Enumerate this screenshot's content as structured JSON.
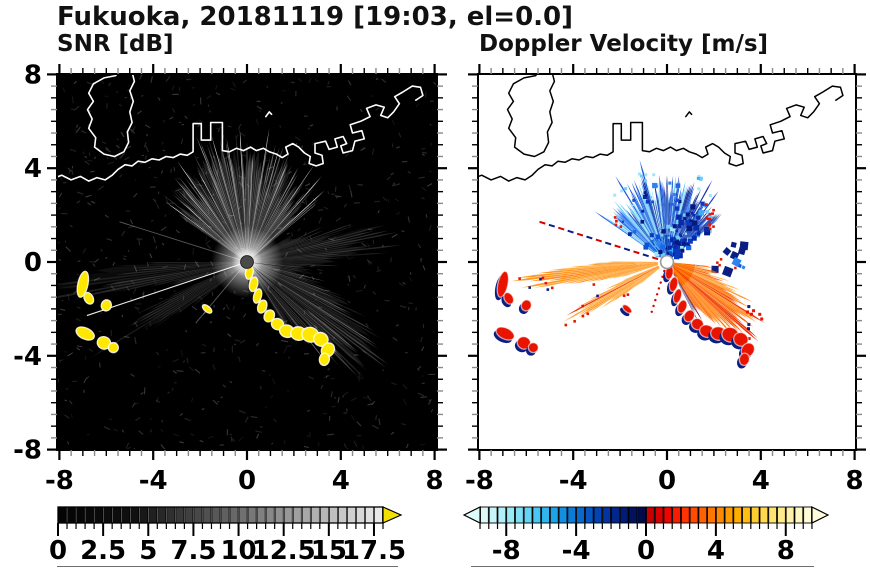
{
  "figure": {
    "title": "Fukuoka, 20181119 [19:03, el=0.0]"
  },
  "panels": {
    "left": {
      "subtitle": "SNR [dB]",
      "x_tick_labels": [
        "-8",
        "-4",
        "0",
        "4",
        "8"
      ],
      "x_tick_values": [
        -8,
        -4,
        0,
        4,
        8
      ],
      "y_tick_labels": [
        "8",
        "4",
        "0",
        "-4",
        "-8"
      ],
      "y_tick_values": [
        8,
        4,
        0,
        -4,
        -8
      ]
    },
    "right": {
      "subtitle": "Doppler Velocity [m/s]",
      "x_tick_labels": [
        "-8",
        "-4",
        "0",
        "4",
        "8"
      ],
      "x_tick_values": [
        -8,
        -4,
        0,
        4,
        8
      ]
    }
  },
  "colorbars": {
    "snr": {
      "labels": [
        "0",
        "2.5",
        "5",
        "7.5",
        "10",
        "12.5",
        "15",
        "17.5"
      ],
      "tick_values": [
        0,
        2.5,
        5,
        7.5,
        10,
        12.5,
        15,
        17.5
      ],
      "range": [
        0,
        18
      ],
      "cell": 0.5,
      "over_color": "#f2e000",
      "gray_flat_until": 4,
      "gray_min": "#040404",
      "gray_max": "#f0f0f0"
    },
    "vel": {
      "labels": [
        "-8",
        "-4",
        "0",
        "4",
        "8"
      ],
      "tick_values": [
        -8,
        -4,
        0,
        4,
        8
      ],
      "range": [
        -9.5,
        9.5
      ],
      "cell": 0.5,
      "under_color": "#dcfbfb",
      "over_color": "#fffbdc",
      "neg_colors": [
        "#daf8f8",
        "#c6f4f8",
        "#b0f0f8",
        "#9ae9f6",
        "#80dff4",
        "#64d4f2",
        "#4ac6f0",
        "#30b6ec",
        "#1ca4e6",
        "#128fe0",
        "#0c7bd6",
        "#0968cc",
        "#0655c2",
        "#0444b2",
        "#0334a0",
        "#02278a",
        "#021b74",
        "#01125e",
        "#010b4a"
      ],
      "pos_colors": [
        "#c40000",
        "#d80000",
        "#ec0600",
        "#fa1c00",
        "#ff3400",
        "#ff4a00",
        "#ff6000",
        "#ff7600",
        "#ff8a00",
        "#ff9c00",
        "#ffae00",
        "#ffbe10",
        "#ffcc30",
        "#ffd850",
        "#ffe270",
        "#ffea8c",
        "#fff1a8",
        "#fff7c2",
        "#fffbd6"
      ]
    }
  },
  "map": {
    "coast_main": [
      [
        -8.3,
        3.55
      ],
      [
        -7.9,
        3.7
      ],
      [
        -7.5,
        3.5
      ],
      [
        -7.1,
        3.65
      ],
      [
        -6.75,
        3.45
      ],
      [
        -6.4,
        3.6
      ],
      [
        -6.05,
        3.5
      ],
      [
        -5.75,
        3.7
      ],
      [
        -5.5,
        3.95
      ],
      [
        -5.2,
        4.15
      ],
      [
        -4.9,
        4.1
      ],
      [
        -4.65,
        4.3
      ],
      [
        -4.35,
        4.25
      ],
      [
        -4.05,
        4.4
      ],
      [
        -3.75,
        4.35
      ],
      [
        -3.45,
        4.5
      ],
      [
        -3.15,
        4.45
      ],
      [
        -2.85,
        4.6
      ],
      [
        -2.55,
        4.55
      ],
      [
        -2.3,
        4.7
      ],
      [
        -2.3,
        5.9
      ],
      [
        -1.95,
        5.9
      ],
      [
        -1.95,
        5.2
      ],
      [
        -1.55,
        5.2
      ],
      [
        -1.55,
        5.95
      ],
      [
        -1.05,
        5.95
      ],
      [
        -1.05,
        4.75
      ],
      [
        -0.75,
        4.7
      ],
      [
        -0.45,
        4.85
      ],
      [
        -0.15,
        4.75
      ],
      [
        0.15,
        4.9
      ],
      [
        0.4,
        4.75
      ],
      [
        0.7,
        4.85
      ],
      [
        0.95,
        4.7
      ],
      [
        1.25,
        4.6
      ],
      [
        1.5,
        4.45
      ],
      [
        1.75,
        4.6
      ],
      [
        1.65,
        4.9
      ],
      [
        1.95,
        5.05
      ],
      [
        2.2,
        4.9
      ],
      [
        2.45,
        4.65
      ],
      [
        2.7,
        4.5
      ],
      [
        2.65,
        4.2
      ],
      [
        2.95,
        4.1
      ],
      [
        3.25,
        4.2
      ],
      [
        3.2,
        4.55
      ],
      [
        2.9,
        4.65
      ],
      [
        2.9,
        5.05
      ],
      [
        3.35,
        5.15
      ],
      [
        3.5,
        4.8
      ],
      [
        3.85,
        4.9
      ],
      [
        3.75,
        5.25
      ],
      [
        4.1,
        5.35
      ],
      [
        4.25,
        5.05
      ],
      [
        4.0,
        4.95
      ],
      [
        4.1,
        4.65
      ],
      [
        4.5,
        4.75
      ],
      [
        4.6,
        5.15
      ],
      [
        5.0,
        5.25
      ],
      [
        4.9,
        5.6
      ],
      [
        4.5,
        5.5
      ],
      [
        4.4,
        5.85
      ],
      [
        4.85,
        6.0
      ],
      [
        5.25,
        6.2
      ],
      [
        5.1,
        6.55
      ],
      [
        5.5,
        6.7
      ],
      [
        5.85,
        6.6
      ],
      [
        5.7,
        6.25
      ],
      [
        6.0,
        6.15
      ],
      [
        6.25,
        6.4
      ],
      [
        6.5,
        6.75
      ],
      [
        6.3,
        7.05
      ],
      [
        6.65,
        7.25
      ],
      [
        7.05,
        7.5
      ],
      [
        7.4,
        7.45
      ],
      [
        7.5,
        7.1
      ],
      [
        7.2,
        6.9
      ]
    ],
    "coast_island": [
      [
        -5.35,
        8.3
      ],
      [
        -5.6,
        7.95
      ],
      [
        -6.1,
        7.85
      ],
      [
        -6.55,
        7.6
      ],
      [
        -6.75,
        7.2
      ],
      [
        -6.55,
        6.85
      ],
      [
        -6.8,
        6.5
      ],
      [
        -6.6,
        6.1
      ],
      [
        -6.75,
        5.7
      ],
      [
        -6.45,
        5.3
      ],
      [
        -6.5,
        4.9
      ],
      [
        -6.1,
        4.6
      ],
      [
        -5.65,
        4.5
      ],
      [
        -5.25,
        4.7
      ],
      [
        -5.05,
        5.1
      ],
      [
        -5.1,
        5.55
      ],
      [
        -4.9,
        5.95
      ],
      [
        -5.0,
        6.4
      ],
      [
        -4.85,
        6.85
      ],
      [
        -5.0,
        7.3
      ],
      [
        -4.8,
        7.7
      ],
      [
        -4.95,
        8.3
      ]
    ],
    "islet": [
      [
        0.8,
        6.2
      ],
      [
        0.95,
        6.4
      ],
      [
        1.05,
        6.3
      ]
    ]
  },
  "radar": {
    "center_km": [
      0,
      0
    ],
    "snr": {
      "bg": "#000000",
      "coast_color": "#ffffff",
      "clutter_color": "#ffe800",
      "center_color": "#4a4a4a"
    },
    "vel": {
      "bg": "#ffffff",
      "coast_color": "#000000",
      "center_color": "#ffffff",
      "blue_dark": [
        "#051a7e",
        "#082aa6",
        "#0b3ac0"
      ],
      "blue_mid": [
        "#1150d6",
        "#1c66ea",
        "#2b84f0"
      ],
      "blue_light": [
        "#43aaf4",
        "#6fcdf7",
        "#a2e6fa"
      ],
      "orange": [
        "#ff6e00",
        "#ff8312",
        "#f95200",
        "#ea2c00",
        "#ff9018"
      ],
      "orange_light": "#ffa838",
      "navy": "#0a1e84",
      "red": "#e81400"
    },
    "sectors": [
      {
        "name": "north_fan",
        "az0": -55,
        "az1": 50,
        "peak": -5,
        "sigma": 40,
        "rbase": 2.6,
        "ramp": 0.9
      },
      {
        "name": "se_lobe",
        "az0": 96,
        "az1": 150,
        "peak": 128,
        "sigma": 19,
        "rbase": 1.6,
        "ramp": 3.1
      },
      {
        "name": "west_wedge_a",
        "az0": 252,
        "az1": 270,
        "peak": 262,
        "sigma": 7,
        "rbase": 1.8,
        "ramp": 4.5
      },
      {
        "name": "west_wedge_b",
        "az0": 231,
        "az1": 247,
        "peak": 240,
        "sigma": 6,
        "rbase": 1.4,
        "ramp": 3.6
      },
      {
        "name": "east_streaks",
        "az0": 60,
        "az1": 96,
        "peak": 80,
        "sigma": 14,
        "rbase": 1.2,
        "ramp": 3.0
      }
    ],
    "rays": [
      {
        "az": 251.5,
        "r": 7.2,
        "type": "bright"
      },
      {
        "az": 220,
        "r": 3.4,
        "type": "faint"
      },
      {
        "az": 287.5,
        "r": 5.7,
        "type": "nw_dashed"
      },
      {
        "az": 197,
        "r": 2.3,
        "type": "sw_dotted"
      }
    ],
    "shadow_rays": [
      {
        "az": 136,
        "r": 4.3
      },
      {
        "az": 129,
        "r": 3.5
      },
      {
        "az": 97,
        "r": 2.6
      },
      {
        "az": 176,
        "r": 2.2
      }
    ]
  },
  "clutter_blobs": {
    "chain": [
      [
        0.1,
        -0.45,
        0.2,
        0.45,
        10
      ],
      [
        0.28,
        -0.95,
        0.22,
        0.5,
        12
      ],
      [
        0.45,
        -1.45,
        0.2,
        0.5,
        15
      ],
      [
        0.65,
        -1.9,
        0.25,
        0.45,
        20
      ],
      [
        0.95,
        -2.3,
        0.3,
        0.4,
        30
      ],
      [
        1.3,
        -2.65,
        0.4,
        0.35,
        25
      ],
      [
        1.7,
        -2.95,
        0.5,
        0.4,
        15
      ],
      [
        2.2,
        -3.05,
        0.55,
        0.45,
        10
      ],
      [
        2.7,
        -3.1,
        0.6,
        0.5,
        15
      ],
      [
        3.15,
        -3.3,
        0.5,
        0.45,
        30
      ],
      [
        3.45,
        -3.75,
        0.4,
        0.5,
        35
      ],
      [
        3.3,
        -4.15,
        0.3,
        0.4,
        10
      ]
    ],
    "west_cluster": [
      [
        -7.0,
        -0.95,
        0.3,
        1.0,
        12
      ],
      [
        -6.75,
        -1.55,
        0.25,
        0.4,
        -30
      ],
      [
        -6.0,
        -1.85,
        0.3,
        0.35,
        20
      ],
      [
        -6.9,
        -3.05,
        0.7,
        0.35,
        25
      ],
      [
        -6.1,
        -3.45,
        0.45,
        0.4,
        20
      ],
      [
        -5.7,
        -3.65,
        0.3,
        0.3,
        0
      ]
    ],
    "dash": [
      [
        -1.7,
        -2.0,
        0.35,
        0.12,
        40
      ]
    ]
  },
  "chart_data": [
    {
      "type": "heatmap",
      "title": "SNR [dB]",
      "xlim": [
        -8.1,
        8.1
      ],
      "ylim": [
        -8,
        8
      ],
      "xticks": [
        -8,
        -4,
        0,
        4,
        8
      ],
      "yticks": [
        8,
        4,
        0,
        -4,
        -8
      ],
      "colorbar": {
        "range_db": [
          0,
          18
        ],
        "tick_labels": [
          0,
          2.5,
          5,
          7.5,
          10,
          12.5,
          15,
          17.5
        ],
        "over_color": "yellow (clutter / >17.5 dB)"
      },
      "radar_center_km": [
        0,
        0
      ],
      "features": [
        {
          "region": "north fan, azimuth -55..50 deg",
          "snr_db": "10-18 near center fading to 0-5 by r=5 km"
        },
        {
          "region": "southeast lobe, azimuth 96..150 deg",
          "snr_db": "5-12 out to r=4.5 km"
        },
        {
          "region": "west wedges, azimuth 231..270 deg",
          "snr_db": "3-8 out to r=6 km"
        },
        {
          "region": "thin ray azimuth 251 deg to r=7 km",
          "snr_db": "~12"
        },
        {
          "region": "ground-clutter chain (0.1,-0.5)->(3.4,-4.2) km and west cluster (-7,-1)->(-5.7,-3.7) km",
          "snr_db": ">17.5 (yellow overflow)"
        },
        {
          "region": "background",
          "snr_db": "~0 (black noise)"
        }
      ]
    },
    {
      "type": "heatmap",
      "title": "Doppler Velocity [m/s]",
      "xlim": [
        -8.1,
        8.1
      ],
      "ylim": [
        -8,
        8
      ],
      "xticks": [
        -8,
        -4,
        0,
        4,
        8
      ],
      "yticks": [
        8,
        4,
        0,
        -4,
        -8
      ],
      "colorbar": {
        "range_ms": [
          -9.5,
          9.5
        ],
        "tick_labels": [
          -8,
          -4,
          0,
          4,
          8
        ]
      },
      "radar_center_km": [
        0,
        0
      ],
      "features": [
        {
          "region": "north fan, azimuth -55..50 deg, r<3.8 km",
          "velocity_ms": "-2 to -9 (blue; darkest ~-8 near center and east side, ~-3 cyan at northwest edge)"
        },
        {
          "region": "southeast lobe, azimuth 96..150 deg, r<4.6 km",
          "velocity_ms": "+3 to +8 (orange/red) with aliased navy fringe on western edge"
        },
        {
          "region": "west wedges, azimuth 231..270 deg, r<6.3 km",
          "velocity_ms": "+4 to +7 (orange)"
        },
        {
          "region": "thin dashed ray azimuth 287 deg",
          "velocity_ms": "alternating +/- (red/navy)"
        },
        {
          "region": "clutter spots (same locations as SNR yellow)",
          "velocity_ms": "mixed strong +/- (red with navy shadows)"
        },
        {
          "region": "elsewhere",
          "velocity_ms": "no data (white)"
        }
      ]
    }
  ]
}
